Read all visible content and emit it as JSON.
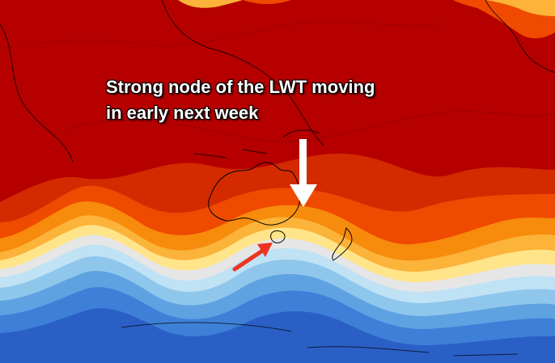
{
  "annotation": {
    "line1": "Strong node of the LWT moving",
    "line2": "in early next week"
  },
  "colors": {
    "band_dark_red": "#b60000",
    "band_red": "#d42a00",
    "band_red_orange": "#ef4a00",
    "band_orange": "#f78b0c",
    "band_light_orange": "#fbb33a",
    "band_yellow": "#ffe48a",
    "band_grey": "#e6e6e6",
    "band_pale_blue": "#bfe2f4",
    "band_light_blue": "#8fc6ec",
    "band_blue": "#5ea2e2",
    "band_mid_blue": "#3e80d8",
    "band_deep_blue": "#2a60c6",
    "white_arrow": "#ffffff",
    "red_arrow": "#ee3320"
  },
  "icons": {
    "white_arrow": "down-arrow-icon",
    "red_arrow": "pointer-arrow-icon"
  }
}
